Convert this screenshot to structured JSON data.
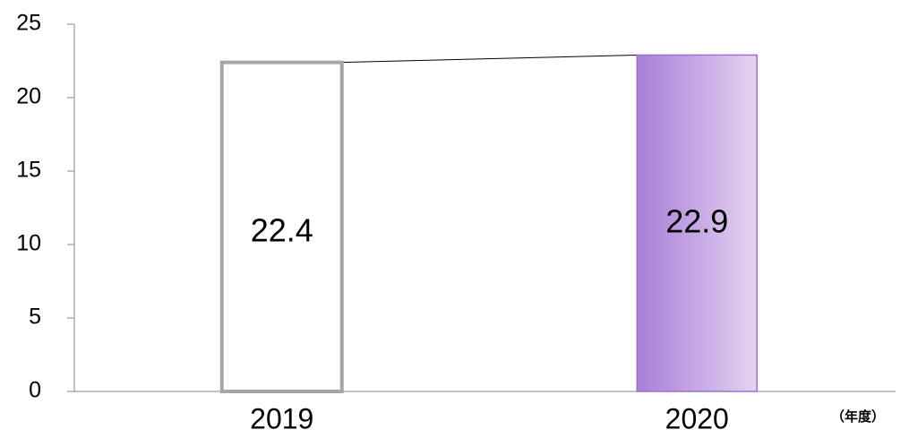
{
  "chart_data": {
    "type": "bar",
    "categories": [
      "2019",
      "2020"
    ],
    "values": [
      22.4,
      22.9
    ],
    "colors": [
      "#ffffff",
      "#a77fd8"
    ],
    "edge_colors": [
      "#a6a6a6",
      "#9b72d0"
    ],
    "x_label": "（年度）",
    "ylim": [
      0,
      25
    ],
    "yticks": [
      0,
      5,
      10,
      15,
      20,
      25
    ],
    "grid": false,
    "connector": true
  }
}
